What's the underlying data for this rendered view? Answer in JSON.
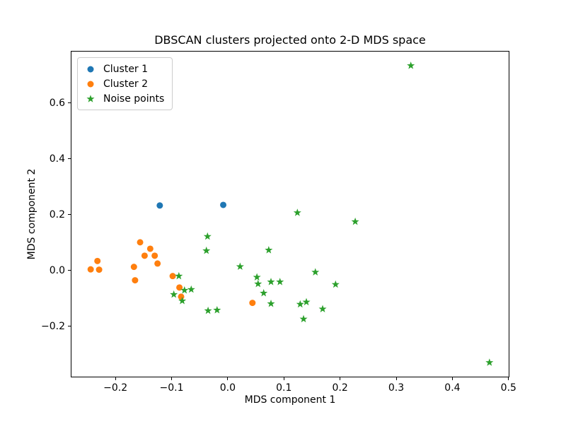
{
  "chart_data": {
    "type": "scatter",
    "title": "DBSCAN clusters projected onto 2-D MDS space",
    "xlabel": "MDS component 1",
    "ylabel": "MDS component 2",
    "xlim": [
      -0.2795,
      0.5015
    ],
    "ylim": [
      -0.383,
      0.787
    ],
    "grid": false,
    "legend_position": "upper-left",
    "xticks": [
      -0.2,
      -0.1,
      0.0,
      0.1,
      0.2,
      0.3,
      0.4,
      0.5
    ],
    "xtick_labels": [
      "−0.2",
      "−0.1",
      "0.0",
      "0.1",
      "0.2",
      "0.3",
      "0.4",
      "0.5"
    ],
    "yticks": [
      -0.2,
      0.0,
      0.2,
      0.4,
      0.6
    ],
    "ytick_labels": [
      "−0.2",
      "0.0",
      "0.2",
      "0.4",
      "0.6"
    ],
    "series": [
      {
        "name": "Cluster 1",
        "marker": "circle",
        "color": "#1f77b4",
        "points": [
          [
            -0.121,
            0.233
          ],
          [
            -0.008,
            0.235
          ]
        ]
      },
      {
        "name": "Cluster 2",
        "marker": "circle",
        "color": "#ff7f0e",
        "points": [
          [
            -0.244,
            0.004
          ],
          [
            -0.232,
            0.034
          ],
          [
            -0.229,
            0.003
          ],
          [
            -0.167,
            0.013
          ],
          [
            -0.165,
            -0.035
          ],
          [
            -0.156,
            0.101
          ],
          [
            -0.148,
            0.053
          ],
          [
            -0.138,
            0.078
          ],
          [
            -0.13,
            0.053
          ],
          [
            -0.125,
            0.025
          ],
          [
            -0.098,
            -0.02
          ],
          [
            -0.086,
            -0.061
          ],
          [
            -0.083,
            -0.094
          ],
          [
            0.044,
            -0.116
          ]
        ]
      },
      {
        "name": "Noise points",
        "marker": "star",
        "color": "#2ca02c",
        "points": [
          [
            -0.096,
            -0.086
          ],
          [
            -0.087,
            -0.02
          ],
          [
            -0.081,
            -0.109
          ],
          [
            -0.077,
            -0.071
          ],
          [
            -0.065,
            -0.068
          ],
          [
            -0.038,
            0.071
          ],
          [
            -0.036,
            0.122
          ],
          [
            -0.035,
            -0.144
          ],
          [
            -0.019,
            -0.142
          ],
          [
            0.022,
            0.014
          ],
          [
            0.052,
            -0.024
          ],
          [
            0.054,
            -0.048
          ],
          [
            0.064,
            -0.081
          ],
          [
            0.073,
            0.073
          ],
          [
            0.077,
            -0.041
          ],
          [
            0.077,
            -0.119
          ],
          [
            0.093,
            -0.041
          ],
          [
            0.124,
            0.207
          ],
          [
            0.129,
            -0.121
          ],
          [
            0.135,
            -0.174
          ],
          [
            0.14,
            -0.113
          ],
          [
            0.156,
            -0.006
          ],
          [
            0.169,
            -0.138
          ],
          [
            0.192,
            -0.05
          ],
          [
            0.227,
            0.175
          ],
          [
            0.326,
            0.734
          ],
          [
            0.466,
            -0.33
          ]
        ]
      }
    ]
  }
}
